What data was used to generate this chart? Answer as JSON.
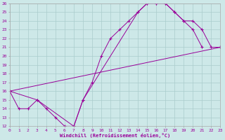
{
  "bg_color": "#cde8e8",
  "grid_color": "#aacccc",
  "line_color": "#990099",
  "xlabel": "Windchill (Refroidissement éolien,°C)",
  "xlim": [
    0,
    23
  ],
  "ylim": [
    12,
    26
  ],
  "xticks": [
    0,
    1,
    2,
    3,
    4,
    5,
    6,
    7,
    8,
    9,
    10,
    11,
    12,
    13,
    14,
    15,
    16,
    17,
    18,
    19,
    20,
    21,
    22,
    23
  ],
  "yticks": [
    12,
    13,
    14,
    15,
    16,
    17,
    18,
    19,
    20,
    21,
    22,
    23,
    24,
    25,
    26
  ],
  "series": [
    {
      "x": [
        0,
        1,
        2,
        3,
        4,
        5,
        6,
        7,
        8,
        9,
        10,
        11,
        12,
        13,
        14,
        15,
        16,
        17,
        18,
        19,
        20,
        21
      ],
      "y": [
        16,
        14,
        14,
        15,
        14,
        13,
        12,
        12,
        15,
        17,
        20,
        22,
        23,
        24,
        25,
        26,
        26,
        26,
        25,
        24,
        23,
        21
      ]
    },
    {
      "x": [
        0,
        3,
        7,
        8,
        14,
        15,
        16,
        17,
        18,
        19,
        20,
        21,
        22,
        23
      ],
      "y": [
        16,
        15,
        12,
        15,
        25,
        26,
        26,
        26,
        25,
        24,
        24,
        23,
        21,
        21
      ]
    },
    {
      "x": [
        0,
        23
      ],
      "y": [
        16,
        21
      ]
    }
  ]
}
